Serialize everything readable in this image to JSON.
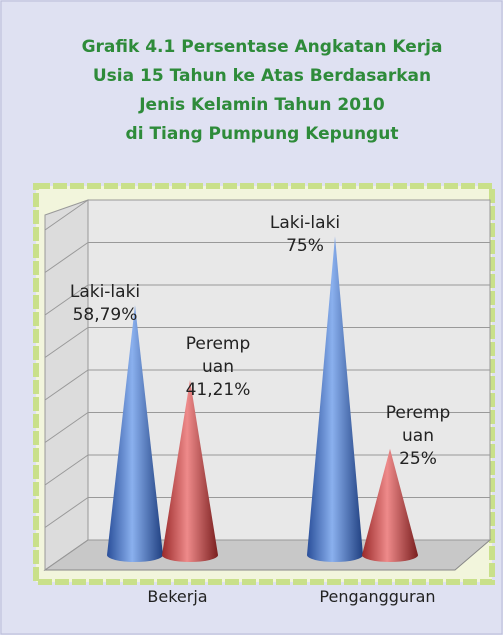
{
  "chart_data": {
    "type": "cone",
    "title": [
      "Grafik 4.1   Persentase Angkatan Kerja",
      "Usia 15 Tahun ke Atas Berdasarkan",
      "Jenis Kelamin Tahun 2010",
      "di Tiang Pumpung Kepungut"
    ],
    "categories": [
      "Bekerja",
      "Pengangguran"
    ],
    "series": [
      {
        "name": "Laki-laki",
        "color": "#4a7ac8",
        "values": [
          58.79,
          75
        ],
        "value_labels": [
          "58,79%",
          "75%"
        ]
      },
      {
        "name": "Perempuan",
        "color": "#c84a4a",
        "values": [
          41.21,
          25
        ],
        "value_labels": [
          "41,21%",
          "25%"
        ]
      }
    ],
    "ylim": [
      0,
      80
    ],
    "yticks": [
      0,
      10,
      20,
      30,
      40,
      50,
      60,
      70,
      80
    ],
    "grid": true
  }
}
